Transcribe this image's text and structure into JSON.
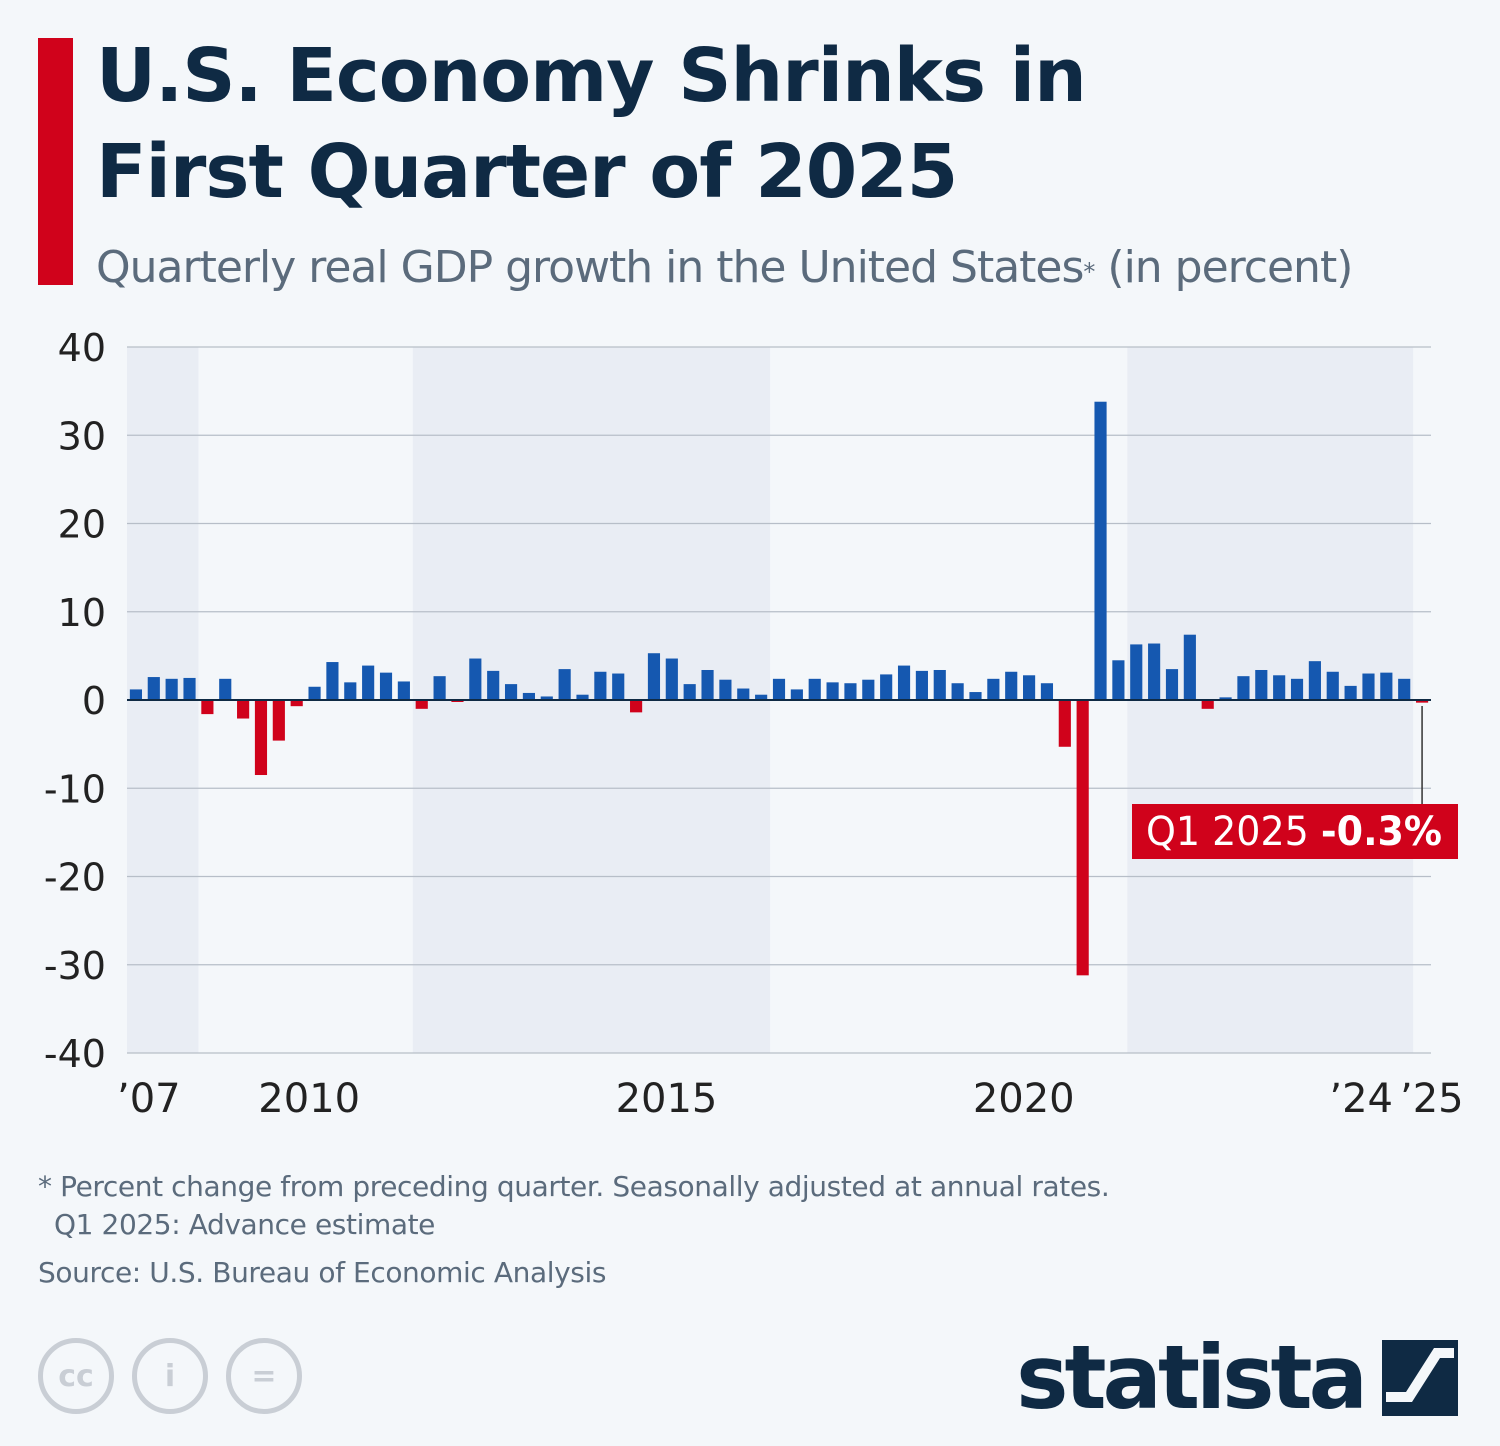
{
  "title": "U.S. Economy Shrinks in First Quarter of 2025",
  "subtitle": "Quarterly real GDP growth in the United States",
  "subtitle_marker": "*",
  "subtitle_unit": " (in percent)",
  "footnote_line1": "* Percent change from preceding quarter. Seasonally adjusted at annual rates.",
  "footnote_line2": "Q1 2025: Advance estimate",
  "source": "Source: U.S. Bureau of Economic Analysis",
  "brand": "statista",
  "license_icons": [
    "cc-icon",
    "attribution-icon",
    "no-derivatives-icon"
  ],
  "license_text": {
    "cc": "cc",
    "attribution": "i",
    "no_derivatives": "="
  },
  "colors": {
    "positive": "#1558b0",
    "negative": "#d0021b",
    "title": "#0f2a44",
    "text": "#5b6b7c",
    "band": "#e9edf4",
    "background": "#f4f7fa"
  },
  "chart_data": {
    "type": "bar",
    "title": "",
    "xlabel": "",
    "ylabel": "",
    "ylim": [
      -40,
      40
    ],
    "yticks": [
      40,
      30,
      20,
      10,
      0,
      -10,
      -20,
      -30,
      -40
    ],
    "grid": true,
    "x_tick_labels": [
      {
        "label": "’07",
        "year": 2007
      },
      {
        "label": "2010",
        "year": 2010
      },
      {
        "label": "2015",
        "year": 2015
      },
      {
        "label": "2020",
        "year": 2020
      },
      {
        "label": "’24",
        "year": 2024
      },
      {
        "label": "’25",
        "year": 2025
      }
    ],
    "shaded_year_bands": [
      [
        2007,
        2007
      ],
      [
        2011,
        2015
      ],
      [
        2021,
        2024
      ]
    ],
    "categories": [
      "Q1 2007",
      "Q2 2007",
      "Q3 2007",
      "Q4 2007",
      "Q1 2008",
      "Q2 2008",
      "Q3 2008",
      "Q4 2008",
      "Q1 2009",
      "Q2 2009",
      "Q3 2009",
      "Q4 2009",
      "Q1 2010",
      "Q2 2010",
      "Q3 2010",
      "Q4 2010",
      "Q1 2011",
      "Q2 2011",
      "Q3 2011",
      "Q4 2011",
      "Q1 2012",
      "Q2 2012",
      "Q3 2012",
      "Q4 2012",
      "Q1 2013",
      "Q2 2013",
      "Q3 2013",
      "Q4 2013",
      "Q1 2014",
      "Q2 2014",
      "Q3 2014",
      "Q4 2014",
      "Q1 2015",
      "Q2 2015",
      "Q3 2015",
      "Q4 2015",
      "Q1 2016",
      "Q2 2016",
      "Q3 2016",
      "Q4 2016",
      "Q1 2017",
      "Q2 2017",
      "Q3 2017",
      "Q4 2017",
      "Q1 2018",
      "Q2 2018",
      "Q3 2018",
      "Q4 2018",
      "Q1 2019",
      "Q2 2019",
      "Q3 2019",
      "Q4 2019",
      "Q1 2020",
      "Q2 2020",
      "Q3 2020",
      "Q4 2020",
      "Q1 2021",
      "Q2 2021",
      "Q3 2021",
      "Q4 2021",
      "Q1 2022",
      "Q2 2022",
      "Q3 2022",
      "Q4 2022",
      "Q1 2023",
      "Q2 2023",
      "Q3 2023",
      "Q4 2023",
      "Q1 2024",
      "Q2 2024",
      "Q3 2024",
      "Q4 2024",
      "Q1 2025"
    ],
    "values": [
      1.2,
      2.6,
      2.4,
      2.5,
      -1.6,
      2.4,
      -2.1,
      -8.5,
      -4.6,
      -0.7,
      1.5,
      4.3,
      2.0,
      3.9,
      3.1,
      2.1,
      -1.0,
      2.7,
      -0.1,
      4.7,
      3.3,
      1.8,
      0.8,
      0.4,
      3.5,
      0.6,
      3.2,
      3.0,
      -1.4,
      5.3,
      4.7,
      1.8,
      3.4,
      2.3,
      1.3,
      0.6,
      2.4,
      1.2,
      2.4,
      2.0,
      1.9,
      2.3,
      2.9,
      3.9,
      3.3,
      3.4,
      1.9,
      0.9,
      2.4,
      3.2,
      2.8,
      1.9,
      -5.3,
      -31.2,
      33.8,
      4.5,
      6.3,
      6.4,
      3.5,
      7.4,
      -1.0,
      0.3,
      2.7,
      3.4,
      2.8,
      2.4,
      4.4,
      3.2,
      1.6,
      3.0,
      3.1,
      2.4,
      -0.3
    ],
    "annotation": {
      "label": "Q1 2025",
      "value_text": "-0.3%",
      "target": "Q1 2025"
    }
  }
}
